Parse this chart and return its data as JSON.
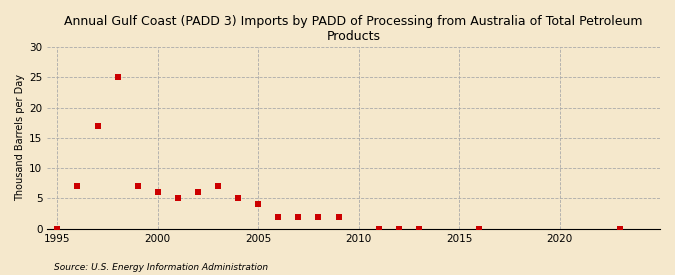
{
  "title": "Annual Gulf Coast (PADD 3) Imports by PADD of Processing from Australia of Total Petroleum\nProducts",
  "ylabel": "Thousand Barrels per Day",
  "source": "Source: U.S. Energy Information Administration",
  "background_color": "#f5e8cc",
  "plot_background_color": "#f5e8cc",
  "marker_color": "#cc0000",
  "marker": "s",
  "marker_size": 4,
  "xlim": [
    1994.5,
    2025
  ],
  "ylim": [
    0,
    30
  ],
  "yticks": [
    0,
    5,
    10,
    15,
    20,
    25,
    30
  ],
  "xticks": [
    1995,
    2000,
    2005,
    2010,
    2015,
    2020
  ],
  "data": {
    "years": [
      1995,
      1996,
      1997,
      1998,
      1999,
      2000,
      2001,
      2002,
      2003,
      2004,
      2005,
      2006,
      2007,
      2008,
      2009,
      2011,
      2012,
      2013,
      2016,
      2023
    ],
    "values": [
      0,
      7,
      17,
      25,
      7,
      6,
      5,
      6,
      7,
      5,
      4,
      2,
      2,
      2,
      2,
      0,
      0,
      0,
      0,
      0
    ]
  }
}
